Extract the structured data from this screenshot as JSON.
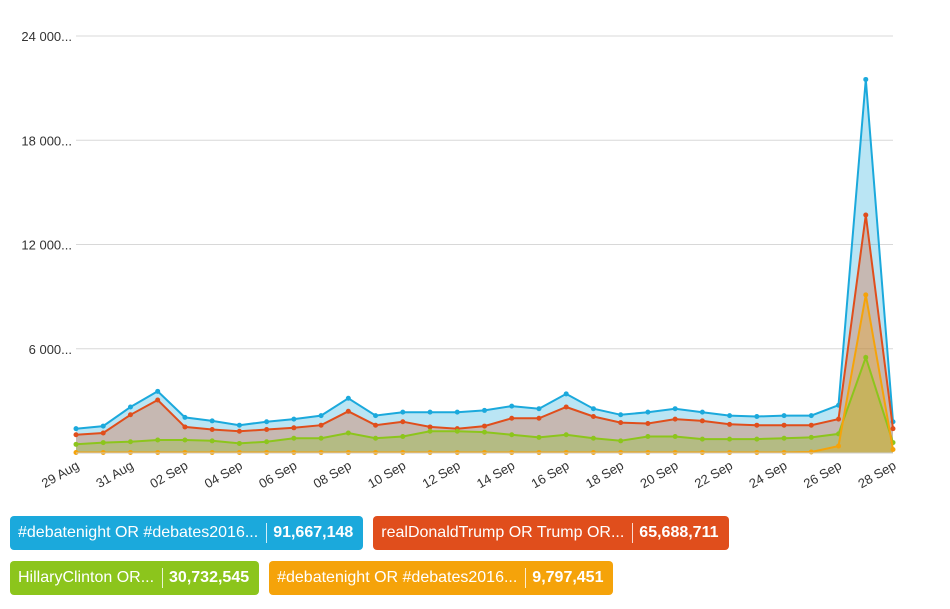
{
  "chart_data": {
    "type": "area",
    "x": [
      "29 Aug",
      "30 Aug",
      "31 Aug",
      "01 Sep",
      "02 Sep",
      "03 Sep",
      "04 Sep",
      "05 Sep",
      "06 Sep",
      "07 Sep",
      "08 Sep",
      "09 Sep",
      "10 Sep",
      "11 Sep",
      "12 Sep",
      "13 Sep",
      "14 Sep",
      "15 Sep",
      "16 Sep",
      "17 Sep",
      "18 Sep",
      "19 Sep",
      "20 Sep",
      "21 Sep",
      "22 Sep",
      "23 Sep",
      "24 Sep",
      "25 Sep",
      "26 Sep",
      "27 Sep",
      "28 Sep"
    ],
    "x_tick_labels": [
      "29 Aug",
      "31 Aug",
      "02 Sep",
      "04 Sep",
      "06 Sep",
      "08 Sep",
      "10 Sep",
      "12 Sep",
      "14 Sep",
      "16 Sep",
      "18 Sep",
      "20 Sep",
      "22 Sep",
      "24 Sep",
      "26 Sep",
      "28 Sep"
    ],
    "y_tick_labels": [
      "",
      "6 000...",
      "12 000...",
      "18 000...",
      "24 000..."
    ],
    "y_ticks": [
      0,
      6000,
      12000,
      18000,
      24000
    ],
    "ylim": [
      0,
      24000
    ],
    "grid": true,
    "legend_position": "bottom",
    "series": [
      {
        "name": "#debatenight OR #debates2016...",
        "total": "91,667,148",
        "color": "#1ba9dc",
        "values": [
          1400,
          1550,
          2650,
          3550,
          2050,
          1850,
          1600,
          1800,
          1950,
          2150,
          3150,
          2150,
          2350,
          2350,
          2350,
          2450,
          2700,
          2550,
          3400,
          2550,
          2200,
          2350,
          2550,
          2350,
          2150,
          2100,
          2150,
          2150,
          2750,
          21500,
          1800
        ]
      },
      {
        "name": "realDonaldTrump OR Trump OR...",
        "total": "65,688,711",
        "color": "#e04e1c",
        "values": [
          1050,
          1150,
          2200,
          3050,
          1500,
          1350,
          1250,
          1350,
          1450,
          1600,
          2400,
          1600,
          1800,
          1500,
          1400,
          1550,
          2000,
          2000,
          2650,
          2100,
          1750,
          1700,
          1950,
          1850,
          1650,
          1600,
          1600,
          1600,
          1950,
          13700,
          1400
        ]
      },
      {
        "name": "HillaryClinton OR...",
        "total": "30,732,545",
        "color": "#8cc51c",
        "values": [
          500,
          600,
          650,
          750,
          750,
          700,
          550,
          650,
          850,
          850,
          1150,
          850,
          950,
          1250,
          1250,
          1200,
          1050,
          900,
          1050,
          850,
          700,
          950,
          950,
          800,
          800,
          800,
          850,
          900,
          1100,
          5500,
          600
        ]
      },
      {
        "name": "#debatenight OR #debates2016...",
        "total": "9,797,451",
        "color": "#f5a30a",
        "values": [
          30,
          30,
          30,
          30,
          30,
          30,
          30,
          30,
          30,
          30,
          30,
          30,
          30,
          30,
          30,
          30,
          30,
          30,
          30,
          30,
          30,
          30,
          30,
          30,
          30,
          30,
          30,
          60,
          400,
          9100,
          200
        ]
      }
    ]
  }
}
